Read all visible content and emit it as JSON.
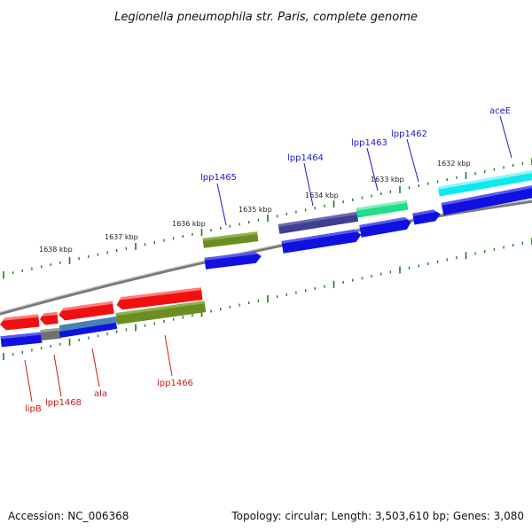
{
  "title": "Legionella pneumophila str. Paris, complete genome",
  "footer": {
    "accession": "Accession: NC_006368",
    "summary": "Topology: circular; Length: 3,503,610 bp; Genes: 3,080"
  },
  "scale_labels": [
    "1638 kbp",
    "1637 kbp",
    "1636 kbp",
    "1635 kbp",
    "1634 kbp",
    "1633 kbp",
    "1632 kbp"
  ],
  "gene_labels": {
    "top": [
      "lpp1465",
      "lpp1464",
      "lpp1463",
      "lpp1462",
      "aceE"
    ],
    "bottom": [
      "lipB",
      "lpp1468",
      "ala",
      "lpp1466"
    ]
  },
  "colors": {
    "label_top": "#1a1ac8",
    "label_bottom": "#cc1a1a",
    "tick": "#1e7a1e",
    "backbone": "#888888",
    "blue_cds": "#1010e0",
    "red_cds": "#f01010",
    "olive": "#6b8e23",
    "dark_slate": "#3f3f8f",
    "spring_green": "#22dd88",
    "cyan": "#10e8f0",
    "steel_blue": "#4682b4",
    "grey": "#707070"
  }
}
